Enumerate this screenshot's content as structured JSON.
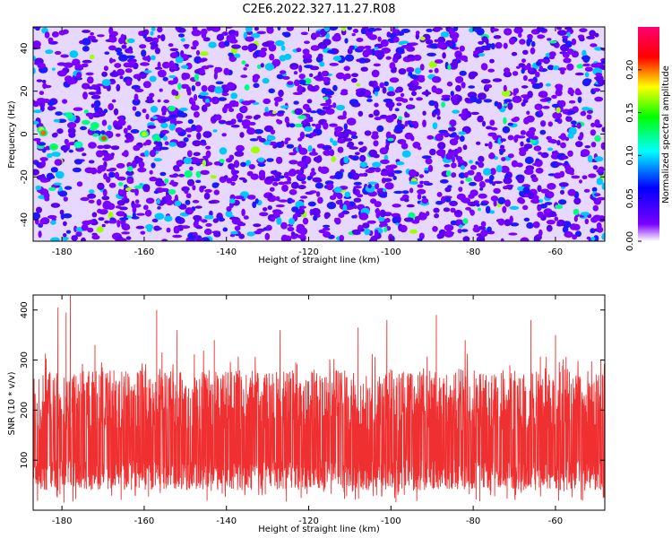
{
  "title": "C2E6.2022.327.11.27.R08",
  "chart_data": [
    {
      "type": "heatmap",
      "xlabel": "Height of straight line (km)",
      "ylabel": "Frequency (Hz)",
      "xlim": [
        -187,
        -48
      ],
      "ylim": [
        -50,
        50
      ],
      "x_ticks": [
        -180,
        -160,
        -140,
        -120,
        -100,
        -80,
        -60
      ],
      "y_ticks": [
        -40,
        -20,
        0,
        20,
        40
      ],
      "grid": false,
      "colorbar": {
        "label": "Normalized spectral amplitude",
        "range": [
          0.0,
          0.25
        ],
        "ticks": [
          "0.00",
          "0.05",
          "0.10",
          "0.15",
          "0.20"
        ],
        "colormap": [
          "#ffffff",
          "#7a00ff",
          "#0000ff",
          "#00ffff",
          "#00ff00",
          "#ffff00",
          "#ff0000",
          "#ff0070"
        ]
      },
      "pattern": "dense speckle of small blobs, mostly 0.02–0.06 (purple/blue), scattered cyan/green peaks, strongest near x≈-185 and x≈-170..-160 around 0 Hz"
    },
    {
      "type": "line",
      "xlabel": "Height of straight line (km)",
      "ylabel": "SNR (10 * v/v)",
      "xlim": [
        -187,
        -48
      ],
      "ylim": [
        0,
        430
      ],
      "x_ticks": [
        -180,
        -160,
        -140,
        -120,
        -100,
        -80,
        -60
      ],
      "y_ticks": [
        100,
        200,
        300,
        400
      ],
      "grid": false,
      "series": [
        {
          "color": "#f03030",
          "baseline_mean": 140,
          "typical_range": [
            40,
            260
          ],
          "peaks": [
            {
              "x": -181,
              "y": 405
            },
            {
              "x": -179,
              "y": 395
            },
            {
              "x": -178,
              "y": 430
            },
            {
              "x": -172,
              "y": 330
            },
            {
              "x": -157,
              "y": 400
            },
            {
              "x": -152,
              "y": 360
            },
            {
              "x": -143,
              "y": 340
            },
            {
              "x": -127,
              "y": 360
            },
            {
              "x": -108,
              "y": 365
            },
            {
              "x": -101,
              "y": 380
            },
            {
              "x": -89,
              "y": 390
            },
            {
              "x": -82,
              "y": 340
            },
            {
              "x": -66,
              "y": 380
            },
            {
              "x": -60,
              "y": 350
            },
            {
              "x": -49,
              "y": 300
            }
          ]
        }
      ]
    }
  ]
}
